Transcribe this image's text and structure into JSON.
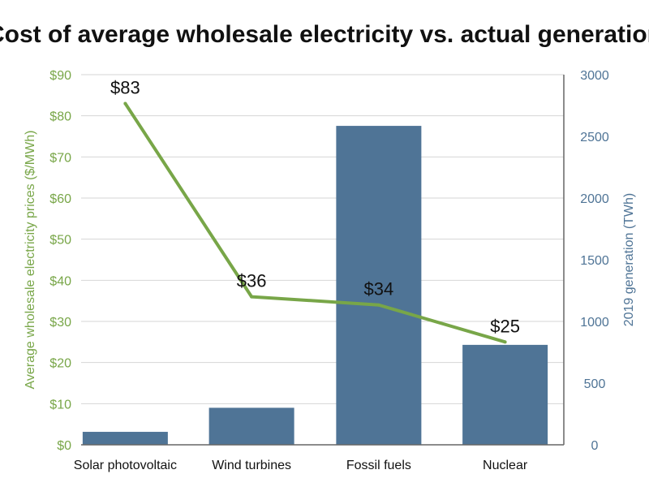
{
  "chart_data": {
    "type": "bar+line",
    "title": "Cost of average wholesale electricity vs. actual generation",
    "categories": [
      "Solar photovoltaic",
      "Wind turbines",
      "Fossil fuels",
      "Nuclear"
    ],
    "left_axis": {
      "label": "Average wholesale electricity prices ($/MWh)",
      "range": [
        0,
        90
      ],
      "ticks": [
        "$0",
        "$10",
        "$20",
        "$30",
        "$40",
        "$50",
        "$60",
        "$70",
        "$80",
        "$90"
      ],
      "color": "#78a648"
    },
    "right_axis": {
      "label": "2019 generation (TWh)",
      "range": [
        0,
        3000
      ],
      "ticks": [
        "0",
        "500",
        "1000",
        "1500",
        "2000",
        "2500",
        "3000"
      ],
      "color": "#4f7496"
    },
    "series": [
      {
        "name": "2019 generation (TWh)",
        "kind": "bar",
        "axis": "right",
        "values": [
          105,
          300,
          2585,
          810
        ],
        "color": "#4f7496"
      },
      {
        "name": "Average wholesale electricity prices ($/MWh)",
        "kind": "line",
        "axis": "left",
        "values": [
          83,
          36,
          34,
          25
        ],
        "labels": [
          "$83",
          "$36",
          "$34",
          "$25"
        ],
        "color": "#78a648"
      }
    ],
    "grid": "horizontal"
  }
}
